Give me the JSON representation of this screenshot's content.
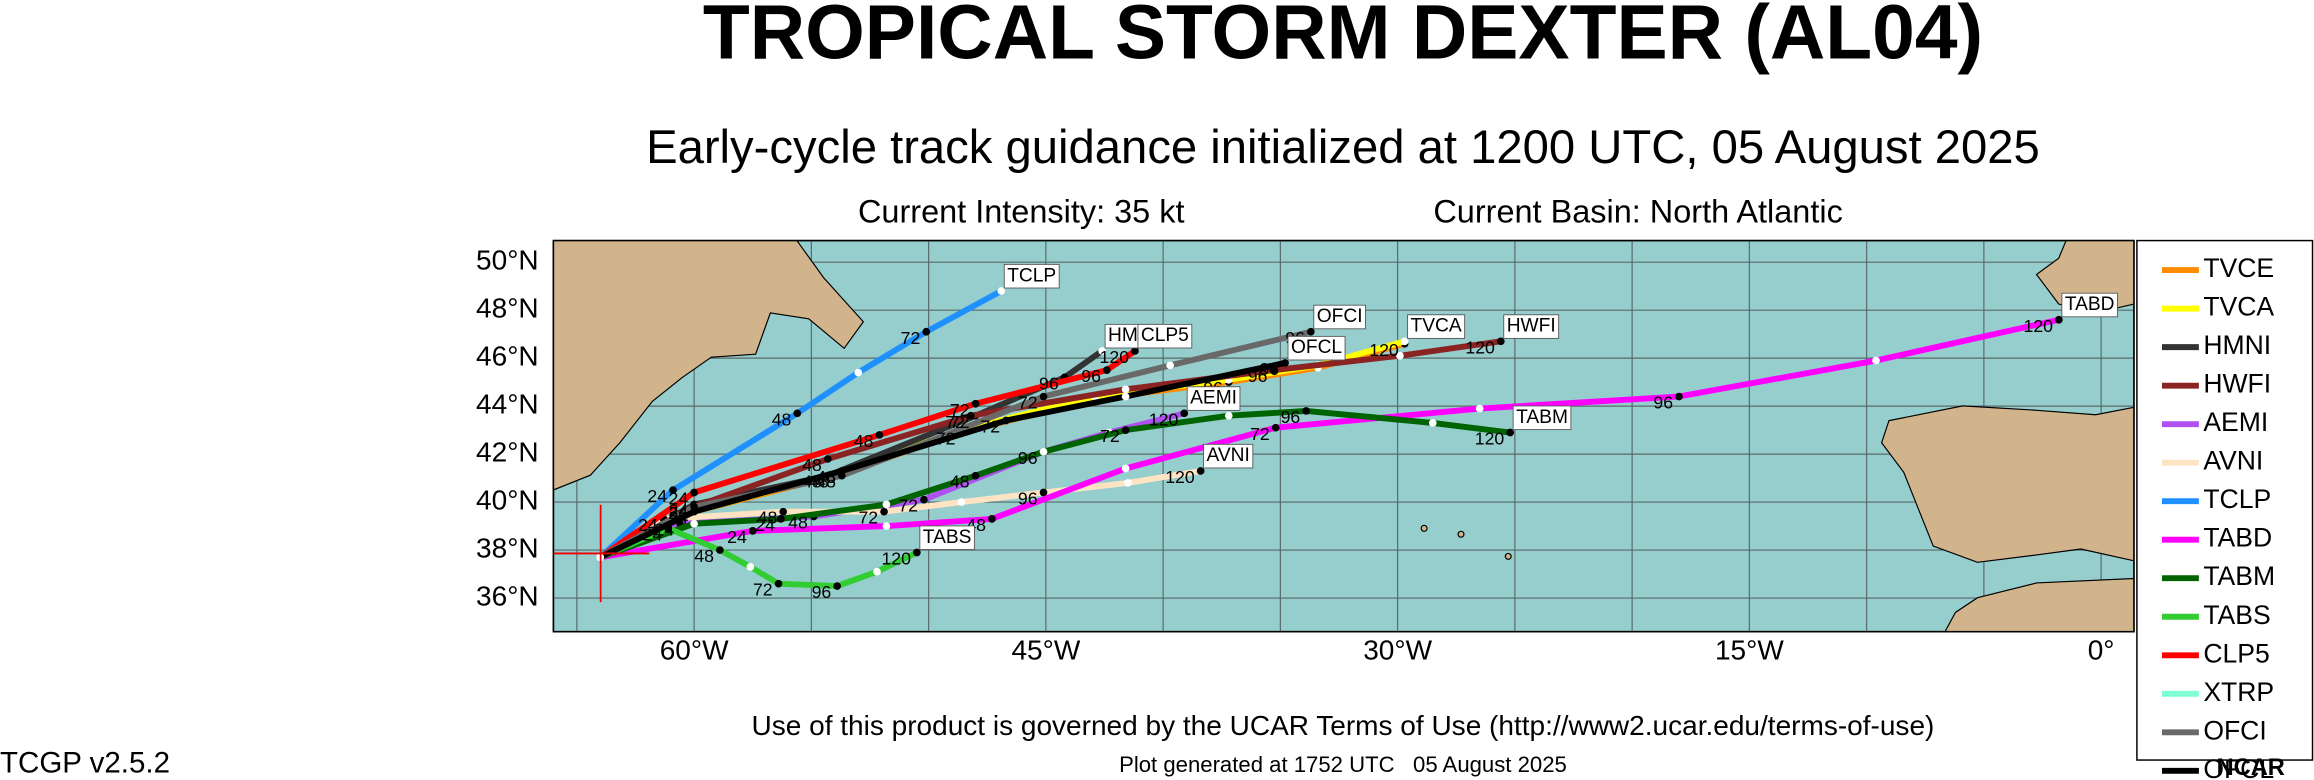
{
  "chart_data": {
    "type": "line",
    "title": "TROPICAL STORM DEXTER (AL04)",
    "subtitle": "Early-cycle track guidance initialized at 1200 UTC, 05 August 2025",
    "intensity": "Current Intensity: 35 kt",
    "basin": "Current Basin: North Atlantic",
    "footer": "Use of this product is governed by the UCAR Terms of Use (http://www2.ucar.edu/terms-of-use)",
    "generated": "Plot generated at 1752 UTC   05 August 2025",
    "version": "TCGP v2.5.2",
    "logo": "NCAR",
    "xlim": [
      -66,
      1.4
    ],
    "ylim": [
      34.6,
      50.9
    ],
    "xticks": [
      {
        "value": -60,
        "label": "60°W"
      },
      {
        "value": -45,
        "label": "45°W"
      },
      {
        "value": -30,
        "label": "30°W"
      },
      {
        "value": -15,
        "label": "15°W"
      },
      {
        "value": 0,
        "label": "0°"
      }
    ],
    "yticks": [
      {
        "value": 50,
        "label": "50°N"
      },
      {
        "value": 48,
        "label": "48°N"
      },
      {
        "value": 46,
        "label": "46°N"
      },
      {
        "value": 44,
        "label": "44°N"
      },
      {
        "value": 42,
        "label": "42°N"
      },
      {
        "value": 40,
        "label": "40°N"
      },
      {
        "value": 38,
        "label": "38°N"
      },
      {
        "value": 36,
        "label": "36°N"
      }
    ],
    "xgrid": [
      -65,
      -60,
      -55,
      -50,
      -45,
      -40,
      -35,
      -30,
      -25,
      -20,
      -15,
      -10,
      -5,
      0
    ],
    "grid": true,
    "series": [
      {
        "name": "TVCE",
        "color": "#ff8c00",
        "tagged": false,
        "x": [
          -64.0,
          -60.0,
          -54.0,
          -48.6,
          -42.9,
          -37.2,
          -33.4,
          -29.7
        ],
        "values": [
          37.7,
          39.6,
          41.1,
          42.9,
          44.3,
          45.0,
          45.6,
          46.6
        ],
        "point_labels": [
          null,
          24,
          48,
          72,
          null,
          96,
          null,
          120
        ]
      },
      {
        "name": "TVCA",
        "color": "#ffff00",
        "tagged": true,
        "x": [
          -64.0,
          -60.0,
          -54.0,
          -48.6,
          -42.9,
          -37.2,
          -33.4,
          -29.7
        ],
        "values": [
          37.7,
          39.6,
          41.2,
          43.0,
          44.4,
          45.1,
          45.7,
          46.7
        ],
        "point_labels": [
          null,
          null,
          null,
          null,
          null,
          null,
          null,
          null
        ]
      },
      {
        "name": "HMNI",
        "color": "#333333",
        "tagged": true,
        "x": [
          -64.0,
          -60.0,
          -54.3,
          -48.0,
          -44.2,
          -42.6
        ],
        "values": [
          37.7,
          39.9,
          41.1,
          43.6,
          45.2,
          46.3
        ],
        "point_labels": [
          null,
          24,
          48,
          72,
          96,
          null
        ]
      },
      {
        "name": "HWFI",
        "color": "#8b2323",
        "tagged": true,
        "x": [
          -64.0,
          -60.0,
          -54.3,
          -48.2,
          -41.6,
          -35.3,
          -29.9,
          -25.6
        ],
        "values": [
          37.7,
          39.8,
          41.8,
          43.6,
          44.7,
          45.5,
          46.1,
          46.7
        ],
        "point_labels": [
          null,
          24,
          48,
          72,
          null,
          96,
          null,
          120
        ]
      },
      {
        "name": "AEMI",
        "color": "#b050f0",
        "tagged": true,
        "x": [
          -64.0,
          -60.6,
          -54.9,
          -50.2,
          -45.1,
          -42.3,
          -39.1
        ],
        "values": [
          37.7,
          39.1,
          39.4,
          40.1,
          42.1,
          42.9,
          43.7
        ],
        "point_labels": [
          null,
          24,
          48,
          72,
          96,
          null,
          120
        ]
      },
      {
        "name": "AVNI",
        "color": "#ffe4c4",
        "tagged": true,
        "x": [
          -64.0,
          -61.3,
          -56.2,
          -51.9,
          -48.6,
          -45.1,
          -41.5,
          -38.4
        ],
        "values": [
          37.7,
          39.3,
          39.6,
          39.6,
          40.0,
          40.4,
          40.8,
          41.3
        ],
        "point_labels": [
          null,
          24,
          48,
          72,
          null,
          96,
          null,
          120
        ]
      },
      {
        "name": "TCLP",
        "color": "#1e90ff",
        "tagged": true,
        "x": [
          -64.0,
          -60.9,
          -55.6,
          -53.0,
          -50.1,
          -46.9
        ],
        "values": [
          37.7,
          40.5,
          43.7,
          45.4,
          47.1,
          48.8
        ],
        "point_labels": [
          null,
          24,
          48,
          null,
          72,
          null
        ]
      },
      {
        "name": "TABD",
        "color": "#ff00ff",
        "tagged": true,
        "x": [
          -64.0,
          -57.5,
          -51.8,
          -47.3,
          -41.6,
          -35.2,
          -26.5,
          -18.0,
          -9.6,
          -1.8
        ],
        "values": [
          37.7,
          38.8,
          39.0,
          39.3,
          41.4,
          43.1,
          43.9,
          44.4,
          45.9,
          47.6
        ],
        "point_labels": [
          null,
          24,
          null,
          48,
          null,
          72,
          null,
          96,
          null,
          120
        ]
      },
      {
        "name": "TABM",
        "color": "#006400",
        "tagged": true,
        "x": [
          -64.0,
          -60.0,
          -56.3,
          -51.8,
          -48.0,
          -45.1,
          -41.6,
          -37.2,
          -33.9,
          -28.5,
          -25.2
        ],
        "values": [
          37.7,
          39.1,
          39.3,
          39.9,
          41.1,
          42.1,
          43.0,
          43.6,
          43.8,
          43.3,
          42.9
        ],
        "point_labels": [
          null,
          null,
          24,
          null,
          48,
          null,
          72,
          null,
          96,
          null,
          120
        ]
      },
      {
        "name": "TABS",
        "color": "#32cd32",
        "tagged": true,
        "x": [
          -64.0,
          -61.1,
          -58.9,
          -57.6,
          -56.4,
          -53.9,
          -52.2,
          -50.5
        ],
        "values": [
          37.7,
          38.9,
          38.0,
          37.3,
          36.6,
          36.5,
          37.1,
          37.9
        ],
        "point_labels": [
          null,
          24,
          48,
          null,
          72,
          96,
          null,
          120
        ]
      },
      {
        "name": "CLP5",
        "color": "#ff0000",
        "tagged": true,
        "x": [
          -64.0,
          -60.0,
          -52.1,
          -48.0,
          -42.4,
          -41.2
        ],
        "values": [
          37.7,
          40.4,
          42.8,
          44.1,
          45.5,
          46.3
        ],
        "point_labels": [
          null,
          24,
          48,
          72,
          96,
          120
        ]
      },
      {
        "name": "XTRP",
        "color": "#7fffd4",
        "tagged": false,
        "x": [],
        "values": [],
        "point_labels": []
      },
      {
        "name": "OFCI",
        "color": "#696969",
        "tagged": true,
        "x": [
          -64.0,
          -60.0,
          -53.7,
          -45.1,
          -39.7,
          -33.7
        ],
        "values": [
          37.7,
          39.8,
          41.1,
          44.4,
          45.7,
          47.1
        ],
        "point_labels": [
          null,
          24,
          48,
          72,
          null,
          96
        ]
      },
      {
        "name": "OFCL",
        "color": "#000000",
        "tagged": true,
        "x": [
          -64.0,
          -60.0,
          -53.7,
          -46.7,
          -41.6,
          -34.8
        ],
        "values": [
          37.7,
          39.6,
          41.3,
          43.4,
          44.4,
          45.8
        ],
        "point_labels": [
          null,
          24,
          48,
          72,
          null,
          96
        ]
      }
    ]
  }
}
